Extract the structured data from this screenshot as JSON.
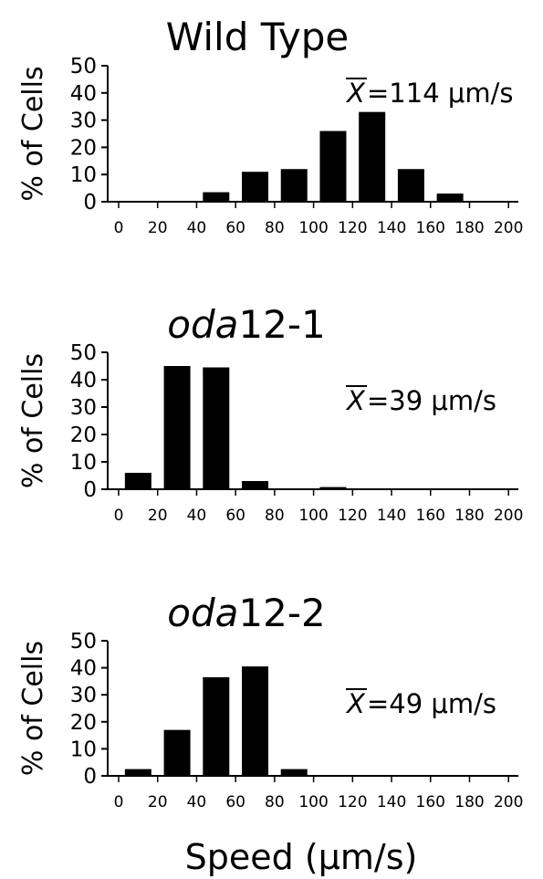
{
  "figure": {
    "xlabel": "Speed (μm/s)"
  },
  "chart_data": [
    {
      "type": "bar",
      "title": "Wild Type",
      "title_italic_part": "",
      "title_rest": "Wild Type",
      "ylabel": "% of Cells",
      "mean_label": "=114 μm/s",
      "ylim": [
        0,
        50
      ],
      "yticks": [
        0,
        10,
        20,
        30,
        40,
        50
      ],
      "xlim": [
        0,
        210
      ],
      "xticks": [
        0,
        20,
        40,
        60,
        80,
        100,
        120,
        140,
        160,
        180,
        200
      ],
      "x": [
        10,
        30,
        50,
        70,
        90,
        110,
        130,
        150,
        170,
        190,
        210
      ],
      "values": [
        0,
        0,
        3.5,
        11,
        12,
        26,
        33,
        12,
        3,
        0,
        0
      ]
    },
    {
      "type": "bar",
      "title": "oda12-1",
      "title_italic_part": "oda",
      "title_rest": "12-1",
      "ylabel": "% of Cells",
      "mean_label": "=39 μm/s",
      "ylim": [
        0,
        50
      ],
      "yticks": [
        0,
        10,
        20,
        30,
        40,
        50
      ],
      "xlim": [
        0,
        210
      ],
      "xticks": [
        0,
        20,
        40,
        60,
        80,
        100,
        120,
        140,
        160,
        180,
        200
      ],
      "x": [
        10,
        30,
        50,
        70,
        90,
        110,
        130,
        150,
        170,
        190,
        210
      ],
      "values": [
        6,
        45,
        44.5,
        3,
        0,
        0.8,
        0,
        0,
        0,
        0,
        0
      ]
    },
    {
      "type": "bar",
      "title": "oda12-2",
      "title_italic_part": "oda",
      "title_rest": "12-2",
      "ylabel": "% of Cells",
      "mean_label": "=49 μm/s",
      "ylim": [
        0,
        50
      ],
      "yticks": [
        0,
        10,
        20,
        30,
        40,
        50
      ],
      "xlim": [
        0,
        210
      ],
      "xticks": [
        0,
        20,
        40,
        60,
        80,
        100,
        120,
        140,
        160,
        180,
        200
      ],
      "x": [
        10,
        30,
        50,
        70,
        90,
        110,
        130,
        150,
        170,
        190,
        210
      ],
      "values": [
        2.5,
        17,
        36.5,
        40.5,
        2.5,
        0,
        0,
        0,
        0,
        0,
        0
      ]
    }
  ]
}
